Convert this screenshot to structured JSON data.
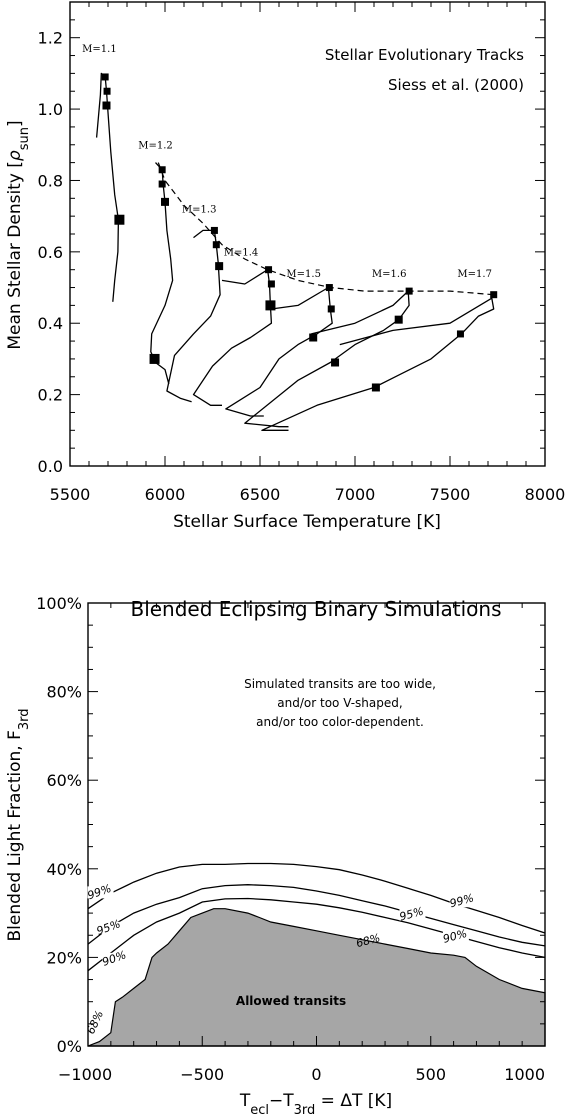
{
  "chart_data": [
    {
      "type": "line",
      "title": "Stellar Evolutionary Tracks",
      "subtitle": "Siess et al. (2000)",
      "xlabel": "Stellar Surface Temperature [K]",
      "ylabel_main": "Mean Stellar Density [",
      "ylabel_rho": "ρ",
      "ylabel_sub": "sun",
      "ylabel_close": "]",
      "xlim": [
        5500,
        8000
      ],
      "ylim": [
        0,
        1.3
      ],
      "xticks": [
        5500,
        6000,
        6500,
        7000,
        7500,
        8000
      ],
      "yticks": [
        0.0,
        0.2,
        0.4,
        0.6,
        0.8,
        1.0,
        1.2
      ],
      "xtick_labels": [
        "5500",
        "6000",
        "6500",
        "7000",
        "7500",
        "8000"
      ],
      "ytick_labels": [
        "0.0",
        "0.2",
        "0.4",
        "0.6",
        "0.8",
        "1.0",
        "1.2"
      ],
      "tracks": [
        {
          "mass": "M=1.1",
          "label_at": [
            5655,
            1.16
          ],
          "points": [
            [
              5640,
              0.92
            ],
            [
              5660,
              1.04
            ],
            [
              5665,
              1.1
            ],
            [
              5685,
              1.09
            ],
            [
              5692,
              1.05
            ],
            [
              5700,
              0.99
            ],
            [
              5715,
              0.88
            ],
            [
              5735,
              0.76
            ],
            [
              5755,
              0.69
            ],
            [
              5752,
              0.6
            ],
            [
              5735,
              0.52
            ],
            [
              5725,
              0.46
            ]
          ],
          "markers": [
            [
              5685,
              1.09,
              "s"
            ],
            [
              5695,
              1.05,
              "s"
            ],
            [
              5692,
              1.01,
              "m"
            ],
            [
              5760,
              0.69,
              "l"
            ]
          ]
        },
        {
          "mass": "M=1.2",
          "label_at": [
            5950,
            0.89
          ],
          "points": [
            [
              5950,
              0.85
            ],
            [
              5985,
              0.83
            ],
            [
              5990,
              0.79
            ],
            [
              6000,
              0.74
            ],
            [
              6010,
              0.66
            ],
            [
              6030,
              0.58
            ],
            [
              6040,
              0.52
            ],
            [
              6000,
              0.45
            ],
            [
              5930,
              0.37
            ],
            [
              5925,
              0.32
            ],
            [
              5950,
              0.29
            ],
            [
              6000,
              0.27
            ],
            [
              6020,
              0.23
            ]
          ],
          "markers": [
            [
              5985,
              0.83,
              "s"
            ],
            [
              5985,
              0.79,
              "s"
            ],
            [
              6000,
              0.74,
              "m"
            ],
            [
              5945,
              0.3,
              "l"
            ]
          ]
        },
        {
          "mass": "M=1.3",
          "label_at": [
            6180,
            0.71
          ],
          "points": [
            [
              6150,
              0.64
            ],
            [
              6200,
              0.66
            ],
            [
              6260,
              0.66
            ],
            [
              6270,
              0.62
            ],
            [
              6280,
              0.57
            ],
            [
              6290,
              0.48
            ],
            [
              6240,
              0.42
            ],
            [
              6150,
              0.37
            ],
            [
              6050,
              0.31
            ],
            [
              6010,
              0.21
            ],
            [
              6080,
              0.19
            ],
            [
              6140,
              0.18
            ]
          ],
          "markers": [
            [
              6260,
              0.66,
              "s"
            ],
            [
              6270,
              0.62,
              "s"
            ],
            [
              6285,
              0.56,
              "m"
            ]
          ]
        },
        {
          "mass": "M=1.4",
          "label_at": [
            6400,
            0.59
          ],
          "points": [
            [
              6300,
              0.52
            ],
            [
              6420,
              0.51
            ],
            [
              6540,
              0.55
            ],
            [
              6550,
              0.51
            ],
            [
              6555,
              0.45
            ],
            [
              6560,
              0.4
            ],
            [
              6450,
              0.36
            ],
            [
              6350,
              0.33
            ],
            [
              6250,
              0.28
            ],
            [
              6150,
              0.2
            ],
            [
              6240,
              0.17
            ],
            [
              6300,
              0.17
            ]
          ],
          "markers": [
            [
              6545,
              0.55,
              "s"
            ],
            [
              6560,
              0.51,
              "s"
            ],
            [
              6555,
              0.45,
              "l"
            ]
          ]
        },
        {
          "mass": "M=1.5",
          "label_at": [
            6730,
            0.53
          ],
          "points": [
            [
              6560,
              0.44
            ],
            [
              6700,
              0.45
            ],
            [
              6860,
              0.5
            ],
            [
              6870,
              0.44
            ],
            [
              6880,
              0.4
            ],
            [
              6800,
              0.37
            ],
            [
              6700,
              0.34
            ],
            [
              6600,
              0.3
            ],
            [
              6500,
              0.22
            ],
            [
              6320,
              0.16
            ],
            [
              6450,
              0.14
            ],
            [
              6520,
              0.14
            ]
          ],
          "markers": [
            [
              6865,
              0.5,
              "s"
            ],
            [
              6875,
              0.44,
              "s"
            ],
            [
              6780,
              0.36,
              "m"
            ]
          ]
        },
        {
          "mass": "M=1.6",
          "label_at": [
            7180,
            0.53
          ],
          "points": [
            [
              6770,
              0.37
            ],
            [
              7000,
              0.4
            ],
            [
              7200,
              0.45
            ],
            [
              7280,
              0.49
            ],
            [
              7285,
              0.45
            ],
            [
              7230,
              0.41
            ],
            [
              7150,
              0.38
            ],
            [
              7000,
              0.34
            ],
            [
              6870,
              0.29
            ],
            [
              6700,
              0.24
            ],
            [
              6420,
              0.12
            ],
            [
              6600,
              0.11
            ],
            [
              6650,
              0.11
            ]
          ],
          "markers": [
            [
              7285,
              0.49,
              "s"
            ],
            [
              7230,
              0.41,
              "m"
            ],
            [
              6895,
              0.29,
              "m"
            ]
          ]
        },
        {
          "mass": "M=1.7",
          "label_at": [
            7630,
            0.53
          ],
          "points": [
            [
              6920,
              0.34
            ],
            [
              7200,
              0.38
            ],
            [
              7500,
              0.4
            ],
            [
              7720,
              0.47
            ],
            [
              7730,
              0.44
            ],
            [
              7650,
              0.42
            ],
            [
              7560,
              0.37
            ],
            [
              7400,
              0.3
            ],
            [
              7250,
              0.26
            ],
            [
              7100,
              0.22
            ],
            [
              6800,
              0.17
            ],
            [
              6510,
              0.1
            ],
            [
              6650,
              0.1
            ]
          ],
          "markers": [
            [
              7730,
              0.48,
              "s"
            ],
            [
              7555,
              0.37,
              "s"
            ],
            [
              7110,
              0.22,
              "m"
            ]
          ]
        }
      ],
      "zams_dashed": [
        [
          5965,
          0.85
        ],
        [
          6000,
          0.8
        ],
        [
          6100,
          0.73
        ],
        [
          6200,
          0.68
        ],
        [
          6300,
          0.62
        ],
        [
          6420,
          0.58
        ],
        [
          6540,
          0.55
        ],
        [
          6700,
          0.52
        ],
        [
          6870,
          0.5
        ],
        [
          7050,
          0.49
        ],
        [
          7290,
          0.49
        ],
        [
          7500,
          0.49
        ],
        [
          7730,
          0.48
        ]
      ]
    },
    {
      "type": "area",
      "title": "Blended Eclipsing Binary Simulations",
      "xlabel_main": "T",
      "xlabel_sub1": "ecl",
      "xlabel_mid": "−T",
      "xlabel_sub2": "3rd",
      "xlabel_tail": " = ΔT [K]",
      "ylabel_main": "Blended Light Fraction, F",
      "ylabel_sub": "3rd",
      "xlim": [
        -1000,
        1000
      ],
      "ylim": [
        0,
        100
      ],
      "xticks": [
        -1000,
        -500,
        0,
        500,
        1000
      ],
      "yticks": [
        0,
        20,
        40,
        60,
        80,
        100
      ],
      "xtick_labels": [
        "−1000",
        "−500",
        "0",
        "500",
        "1000"
      ],
      "ytick_labels": [
        "0%",
        "20%",
        "40%",
        "60%",
        "80%",
        "100%"
      ],
      "note_lines": [
        "Simulated transits are too wide,",
        "and/or too V-shaped,",
        "and/or too color-dependent."
      ],
      "region_label": "Allowed transits",
      "allowed_region_68": {
        "name": "68%",
        "x": [
          -1000,
          -950,
          -900,
          -880,
          -850,
          -800,
          -750,
          -720,
          -700,
          -650,
          -600,
          -550,
          -500,
          -450,
          -400,
          -300,
          -250,
          -200,
          -100,
          0,
          100,
          200,
          300,
          400,
          500,
          600,
          650,
          700,
          800,
          900,
          1000
        ],
        "y": [
          0,
          1,
          3,
          10,
          11,
          13,
          15,
          20,
          21,
          23,
          26,
          29,
          30,
          31,
          31,
          30,
          29,
          28,
          27,
          26,
          25,
          24,
          23,
          22,
          21,
          20.5,
          20,
          18,
          15,
          13,
          12
        ]
      },
      "contours": [
        {
          "name": "90%",
          "label_at": [
            -880,
            19
          ],
          "x": [
            -1000,
            -900,
            -800,
            -700,
            -600,
            -500,
            -400,
            -300,
            -200,
            -100,
            0,
            100,
            200,
            300,
            400,
            500,
            600,
            700,
            800,
            900,
            1000
          ],
          "y": [
            17,
            21,
            25,
            28,
            30,
            32.5,
            33.2,
            33.3,
            33.0,
            32.5,
            32.0,
            31.2,
            30.2,
            29.0,
            27.8,
            26.4,
            25.0,
            23.6,
            22.2,
            21.0,
            20.0
          ]
        },
        {
          "name": "95%",
          "label_at": [
            -905,
            26
          ],
          "x": [
            -1000,
            -900,
            -800,
            -700,
            -600,
            -500,
            -400,
            -300,
            -200,
            -100,
            0,
            100,
            200,
            300,
            400,
            500,
            600,
            700,
            800,
            900,
            1000
          ],
          "y": [
            23,
            27,
            30,
            32,
            33.5,
            35.5,
            36.2,
            36.4,
            36.2,
            35.8,
            35.0,
            34.0,
            32.8,
            31.6,
            30.2,
            28.8,
            27.4,
            26.0,
            24.6,
            23.4,
            22.6
          ]
        },
        {
          "name": "99%",
          "label_at": [
            -945,
            34
          ],
          "x": [
            -1000,
            -900,
            -800,
            -700,
            -600,
            -500,
            -400,
            -300,
            -200,
            -100,
            0,
            100,
            200,
            300,
            400,
            500,
            600,
            700,
            800,
            900,
            1000
          ],
          "y": [
            31,
            34.5,
            37,
            39,
            40.4,
            41.0,
            41.0,
            41.2,
            41.2,
            41.0,
            40.5,
            39.8,
            38.6,
            37.2,
            35.6,
            34.0,
            32.2,
            30.6,
            29.0,
            27.2,
            25.5
          ]
        }
      ],
      "contour_labels_right": [
        {
          "name": "99%",
          "at": [
            640,
            32
          ]
        },
        {
          "name": "95%",
          "at": [
            420,
            29
          ]
        },
        {
          "name": "90%",
          "at": [
            610,
            24
          ]
        },
        {
          "name": "68%",
          "at": [
            230,
            23
          ]
        }
      ]
    }
  ]
}
